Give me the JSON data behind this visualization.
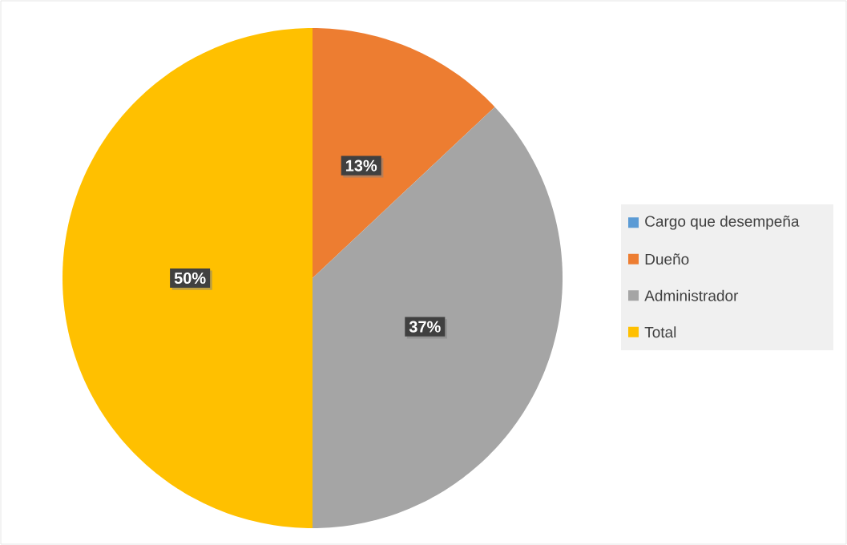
{
  "chart_data": {
    "type": "pie",
    "categories": [
      "Cargo que desempeña",
      "Dueño",
      "Administrador",
      "Total"
    ],
    "values": [
      0,
      13,
      37,
      50
    ],
    "colors": [
      "#5b9bd5",
      "#ed7d31",
      "#a5a5a5",
      "#ffc000"
    ],
    "value_labels": [
      null,
      "13%",
      "37%",
      "50%"
    ],
    "legend": "right"
  }
}
